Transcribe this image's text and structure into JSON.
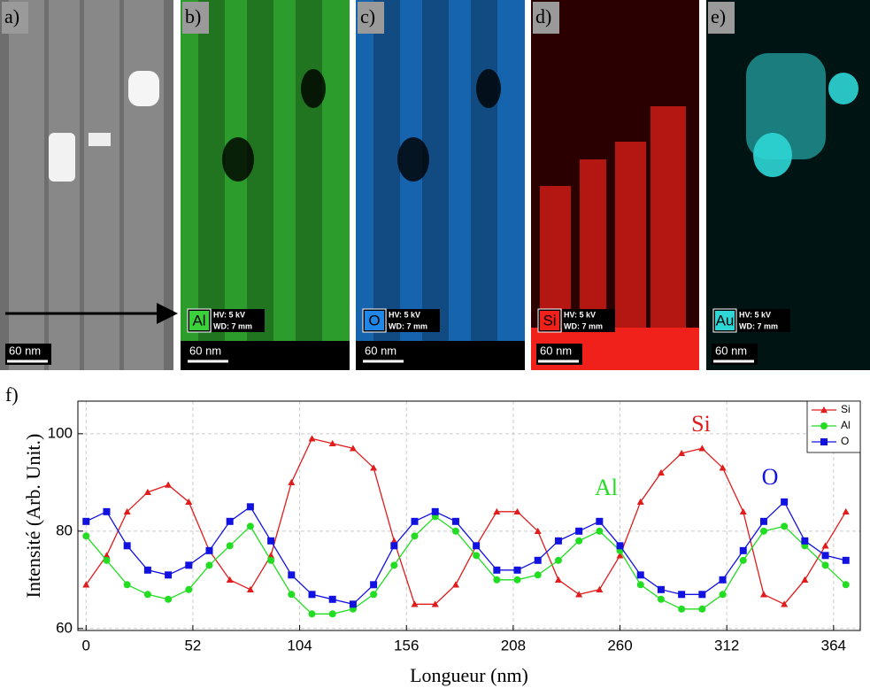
{
  "panels": [
    {
      "label": "a)",
      "scale": "60 nm",
      "color": "#8a8a8a"
    },
    {
      "label": "b)",
      "element": "Al",
      "hv": "HV: 5 kV",
      "wd": "WD: 7 mm",
      "scale": "60 nm",
      "color": "#3bd13b"
    },
    {
      "label": "c)",
      "element": "O",
      "hv": "HV: 5 kV",
      "wd": "WD: 7 mm",
      "scale": "60 nm",
      "color": "#1f86e8"
    },
    {
      "label": "d)",
      "element": "Si",
      "hv": "HV: 5 kV",
      "wd": "WD: 7 mm",
      "scale": "60 nm",
      "color": "#f0201a"
    },
    {
      "label": "e)",
      "element": "Au",
      "hv": "HV: 5 kV",
      "wd": "WD: 7 mm",
      "scale": "60 nm",
      "color": "#2fd6d6"
    }
  ],
  "chart_data": {
    "type": "line",
    "label": "f)",
    "xlabel": "Longueur (nm)",
    "ylabel": "Intensité (Arb. Unit.)",
    "x": [
      0,
      10,
      20,
      30,
      40,
      50,
      60,
      70,
      80,
      90,
      100,
      110,
      120,
      130,
      140,
      150,
      160,
      170,
      180,
      190,
      200,
      210,
      220,
      230,
      240,
      250,
      260,
      270,
      280,
      290,
      300,
      310,
      320,
      330,
      340,
      350,
      360,
      370
    ],
    "series": [
      {
        "name": "Si",
        "color": "#e01c1c",
        "marker": "triangle",
        "values": [
          69,
          75,
          84,
          88,
          89.5,
          86,
          76,
          70,
          68,
          75,
          90,
          99,
          98,
          97,
          93,
          78,
          65,
          65,
          69,
          77,
          84,
          84,
          80,
          70,
          67,
          68,
          75,
          86,
          92,
          96,
          97,
          93,
          84,
          67,
          65,
          70,
          77,
          84
        ]
      },
      {
        "name": "Al",
        "color": "#22dd22",
        "marker": "circle",
        "values": [
          79,
          74,
          69,
          67,
          66,
          68,
          73,
          77,
          81,
          74,
          67,
          63,
          63,
          64,
          67,
          73,
          79,
          83,
          80,
          75,
          70,
          70,
          71,
          74,
          78,
          80,
          76,
          69,
          66,
          64,
          64,
          67,
          74,
          80,
          81,
          77,
          73,
          69
        ]
      },
      {
        "name": "O",
        "color": "#1212e0",
        "marker": "square",
        "values": [
          82,
          84,
          77,
          72,
          71,
          73,
          76,
          82,
          85,
          78,
          71,
          67,
          66,
          65,
          69,
          77,
          82,
          84,
          82,
          77,
          72,
          72,
          74,
          78,
          80,
          82,
          77,
          71,
          68,
          67,
          67,
          70,
          76,
          82,
          86,
          78,
          75,
          74
        ]
      }
    ],
    "annotations": [
      {
        "text": "Si",
        "color": "#e01c1c"
      },
      {
        "text": "Al",
        "color": "#22dd22"
      },
      {
        "text": "O",
        "color": "#1212e0"
      }
    ],
    "xlim": [
      -4,
      377
    ],
    "ylim": [
      59.6,
      106.7
    ],
    "xticks": [
      0,
      52,
      104,
      156,
      208,
      260,
      312,
      364
    ],
    "yticks": [
      60,
      80,
      100
    ],
    "grid": true,
    "legend": "upper right"
  }
}
